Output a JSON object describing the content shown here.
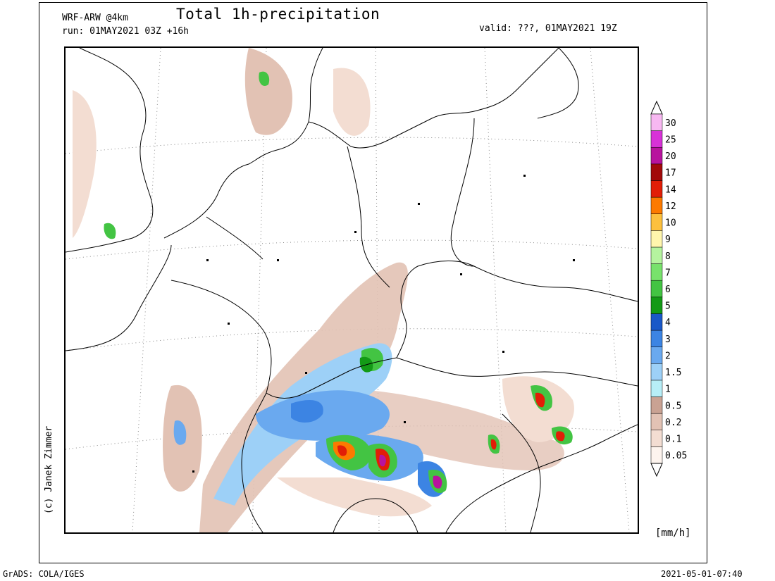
{
  "header": {
    "model": "WRF-ARW @4km",
    "run": "run: 01MAY2021 03Z +16h",
    "title": "Total 1h-precipitation",
    "valid": "valid: ???, 01MAY2021 19Z"
  },
  "credit": "(c) Janek Zimmer",
  "footer": {
    "left": "GrADS: COLA/IGES",
    "right": "2021-05-01-07:40"
  },
  "legend": {
    "units": "[mm/h]",
    "levels": [
      {
        "label": "0.05",
        "color": "#fdf4ee"
      },
      {
        "label": "0.1",
        "color": "#f3ddd2"
      },
      {
        "label": "0.2",
        "color": "#e2c2b4"
      },
      {
        "label": "0.5",
        "color": "#c9a293"
      },
      {
        "label": "1",
        "color": "#b7eef7"
      },
      {
        "label": "1.5",
        "color": "#9dd0f7"
      },
      {
        "label": "2",
        "color": "#6aa9ef"
      },
      {
        "label": "3",
        "color": "#3c84e3"
      },
      {
        "label": "4",
        "color": "#1a58c8"
      },
      {
        "label": "5",
        "color": "#139a16"
      },
      {
        "label": "6",
        "color": "#43c443"
      },
      {
        "label": "7",
        "color": "#78e26c"
      },
      {
        "label": "8",
        "color": "#b5f49f"
      },
      {
        "label": "9",
        "color": "#fff6ad"
      },
      {
        "label": "10",
        "color": "#fcc03e"
      },
      {
        "label": "12",
        "color": "#fc7a00"
      },
      {
        "label": "14",
        "color": "#e11e07"
      },
      {
        "label": "17",
        "color": "#a20a0a"
      },
      {
        "label": "20",
        "color": "#b8139e"
      },
      {
        "label": "25",
        "color": "#d732d7"
      },
      {
        "label": "30",
        "color": "#f7b8f1"
      }
    ]
  }
}
